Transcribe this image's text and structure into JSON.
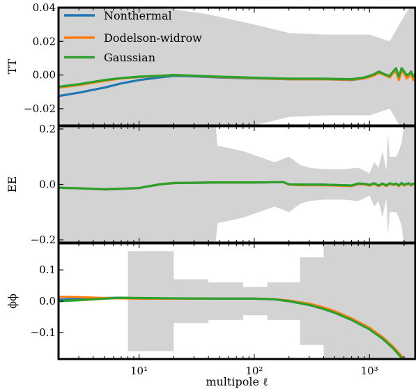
{
  "chart_data": [
    {
      "type": "line",
      "panel": "TT",
      "ylabel": "TT",
      "xscale": "log",
      "xlim": [
        2,
        2500
      ],
      "ylim": [
        -0.03,
        0.04
      ],
      "yticks": [
        -0.02,
        0.0,
        0.02,
        0.04
      ],
      "ytick_labels": [
        "−0.02",
        "0.00",
        "0.02",
        "0.04"
      ],
      "band": {
        "x": [
          2,
          5,
          10,
          20,
          40,
          100,
          200,
          400,
          700,
          1000,
          1500,
          2000,
          2500
        ],
        "upper": [
          0.04,
          0.04,
          0.04,
          0.039,
          0.036,
          0.03,
          0.025,
          0.024,
          0.024,
          0.024,
          0.02,
          0.035,
          0.045
        ],
        "lower": [
          -0.04,
          -0.04,
          -0.04,
          -0.039,
          -0.036,
          -0.03,
          -0.025,
          -0.024,
          -0.024,
          -0.024,
          -0.02,
          -0.035,
          -0.045
        ]
      },
      "series": [
        {
          "name": "Nonthermal",
          "color": "#1f77b4",
          "x": [
            2,
            3,
            5,
            7,
            10,
            15,
            20,
            30,
            50,
            100,
            200,
            400,
            700,
            900,
            1000,
            1100,
            1200,
            1300,
            1400,
            1500,
            1600,
            1700,
            1800,
            1900,
            2000,
            2100,
            2200,
            2300,
            2400,
            2500
          ],
          "y": [
            -0.0125,
            -0.0105,
            -0.0075,
            -0.005,
            -0.003,
            -0.0015,
            -0.0005,
            -0.0008,
            -0.0015,
            -0.002,
            -0.0025,
            -0.0025,
            -0.003,
            -0.002,
            -0.001,
            0.0,
            0.002,
            0.001,
            0.0,
            -0.001,
            0.002,
            0.003,
            -0.002,
            0.004,
            0.002,
            -0.001,
            0.0,
            0.002,
            -0.0015,
            0.001
          ]
        },
        {
          "name": "Dodelson-widrow",
          "color": "#ff7f0e",
          "x": [
            2,
            3,
            5,
            7,
            10,
            15,
            20,
            30,
            50,
            100,
            200,
            400,
            700,
            900,
            1000,
            1100,
            1200,
            1300,
            1400,
            1500,
            1600,
            1700,
            1800,
            1900,
            2000,
            2100,
            2200,
            2300,
            2400,
            2500
          ],
          "y": [
            -0.0075,
            -0.006,
            -0.0035,
            -0.002,
            -0.0012,
            -0.0006,
            0.0,
            -0.0005,
            -0.0012,
            -0.0018,
            -0.0025,
            -0.0025,
            -0.0028,
            -0.002,
            -0.0012,
            -0.0002,
            0.0012,
            0.0005,
            -0.0005,
            -0.0015,
            0.0012,
            0.002,
            -0.003,
            0.0025,
            0.001,
            -0.002,
            -0.001,
            0.001,
            -0.003,
            -0.001
          ]
        },
        {
          "name": "Gaussian",
          "color": "#2ca02c",
          "x": [
            2,
            3,
            5,
            7,
            10,
            15,
            20,
            30,
            50,
            100,
            200,
            400,
            700,
            900,
            1000,
            1100,
            1200,
            1300,
            1400,
            1500,
            1600,
            1700,
            1800,
            1900,
            2000,
            2100,
            2200,
            2300,
            2400,
            2500
          ],
          "y": [
            -0.007,
            -0.0055,
            -0.003,
            -0.0018,
            -0.001,
            -0.0005,
            0.0,
            -0.0004,
            -0.001,
            -0.0016,
            -0.0022,
            -0.0022,
            -0.0025,
            -0.0015,
            -0.0005,
            0.0005,
            0.002,
            0.001,
            0.0,
            -0.0005,
            0.002,
            0.004,
            -0.001,
            0.004,
            0.002,
            0.0,
            0.0005,
            0.002,
            -0.001,
            0.0005
          ]
        }
      ]
    },
    {
      "type": "line",
      "panel": "EE",
      "ylabel": "EE",
      "xscale": "log",
      "xlim": [
        2,
        2500
      ],
      "ylim": [
        -0.21,
        0.21
      ],
      "yticks": [
        -0.2,
        0.0,
        0.2
      ],
      "ytick_labels": [
        "−0.2",
        "0.0",
        "0.2"
      ],
      "band": {
        "x": [
          2,
          10,
          20,
          46,
          48,
          80,
          150,
          200,
          250,
          300,
          400,
          600,
          800,
          900,
          1000,
          1100,
          1200,
          1300,
          1400,
          1450,
          1500,
          1600,
          1700,
          1800,
          1900,
          2000,
          2010,
          2500
        ],
        "upper": [
          0.22,
          0.22,
          0.22,
          0.22,
          0.14,
          0.12,
          0.08,
          0.1,
          0.07,
          0.06,
          0.055,
          0.055,
          0.06,
          0.05,
          0.04,
          0.08,
          0.06,
          0.12,
          0.05,
          0.18,
          0.1,
          0.1,
          0.1,
          0.12,
          0.15,
          0.22,
          0.22,
          0.22
        ],
        "lower": [
          -0.22,
          -0.22,
          -0.22,
          -0.22,
          -0.14,
          -0.12,
          -0.08,
          -0.1,
          -0.07,
          -0.06,
          -0.055,
          -0.055,
          -0.06,
          -0.05,
          -0.04,
          -0.08,
          -0.06,
          -0.12,
          -0.05,
          -0.18,
          -0.1,
          -0.1,
          -0.1,
          -0.12,
          -0.15,
          -0.22,
          -0.22,
          -0.22
        ]
      },
      "series": [
        {
          "name": "Nonthermal",
          "color": "#1f77b4",
          "x": [
            2,
            3,
            5,
            7,
            10,
            15,
            20,
            30,
            50,
            100,
            180,
            200,
            250,
            400,
            700,
            800,
            900,
            1000,
            1100,
            1200,
            1300,
            1400,
            1500,
            1600,
            1700,
            1800,
            1900,
            2000,
            2100,
            2200,
            2300,
            2400,
            2500
          ],
          "y": [
            -0.012,
            -0.014,
            -0.018,
            -0.016,
            -0.013,
            0.0,
            0.005,
            0.006,
            0.007,
            0.007,
            0.008,
            0.0,
            -0.001,
            -0.001,
            -0.004,
            0.003,
            0.002,
            -0.002,
            0.004,
            -0.004,
            0.003,
            -0.004,
            0.004,
            0.0,
            0.003,
            -0.004,
            0.005,
            -0.002,
            0.002,
            0.004,
            -0.002,
            0.003,
            0.001
          ]
        },
        {
          "name": "Dodelson-widrow",
          "color": "#ff7f0e",
          "x": [
            2,
            3,
            5,
            7,
            10,
            15,
            20,
            30,
            50,
            100,
            180,
            200,
            250,
            400,
            700,
            800,
            900,
            1000,
            1100,
            1200,
            1300,
            1400,
            1500,
            1600,
            1700,
            1800,
            1900,
            2000,
            2100,
            2200,
            2300,
            2400,
            2500
          ],
          "y": [
            -0.012,
            -0.014,
            -0.018,
            -0.016,
            -0.013,
            0.0,
            0.005,
            0.006,
            0.007,
            0.007,
            0.008,
            -0.001,
            -0.003,
            -0.003,
            -0.006,
            0.001,
            0.0,
            -0.004,
            0.002,
            -0.006,
            0.001,
            -0.006,
            0.002,
            -0.002,
            0.001,
            -0.006,
            0.003,
            -0.004,
            0.0,
            0.002,
            -0.004,
            0.001,
            -0.001
          ]
        },
        {
          "name": "Gaussian",
          "color": "#2ca02c",
          "x": [
            2,
            3,
            5,
            7,
            10,
            15,
            20,
            30,
            50,
            100,
            180,
            200,
            250,
            400,
            700,
            800,
            900,
            1000,
            1100,
            1200,
            1300,
            1400,
            1500,
            1600,
            1700,
            1800,
            1900,
            2000,
            2100,
            2200,
            2300,
            2400,
            2500
          ],
          "y": [
            -0.012,
            -0.014,
            -0.018,
            -0.016,
            -0.013,
            0.0,
            0.005,
            0.006,
            0.007,
            0.007,
            0.008,
            0.0,
            -0.001,
            -0.001,
            -0.004,
            0.003,
            0.002,
            -0.002,
            0.004,
            -0.004,
            0.003,
            -0.004,
            0.004,
            0.0,
            0.003,
            -0.004,
            0.005,
            -0.002,
            0.002,
            0.004,
            -0.002,
            0.003,
            0.001
          ]
        }
      ]
    },
    {
      "type": "line",
      "panel": "phiphi",
      "ylabel": "ϕϕ",
      "xscale": "log",
      "xlim": [
        2,
        2500
      ],
      "ylim": [
        -0.185,
        0.185
      ],
      "yticks": [
        -0.1,
        0.0,
        0.1
      ],
      "ytick_labels": [
        "−0.1",
        "0.0",
        "0.1"
      ],
      "xticks": [
        10,
        100,
        1000
      ],
      "xtick_labels": [
        "10¹",
        "10²",
        "10³"
      ],
      "xlabel": "multipole ℓ",
      "band": {
        "x": [
          8,
          8,
          20,
          20,
          40,
          40,
          80,
          80,
          130,
          130,
          250,
          250,
          400,
          400,
          2500
        ],
        "upper": [
          0.16,
          0.16,
          0.16,
          0.07,
          0.07,
          0.06,
          0.06,
          0.045,
          0.045,
          0.06,
          0.06,
          0.14,
          0.14,
          0.2,
          0.2
        ],
        "lower": [
          -0.16,
          -0.16,
          -0.16,
          -0.07,
          -0.07,
          -0.06,
          -0.06,
          -0.045,
          -0.045,
          -0.06,
          -0.06,
          -0.14,
          -0.14,
          -0.2,
          -0.2
        ]
      },
      "series": [
        {
          "name": "Nonthermal",
          "color": "#1f77b4",
          "x": [
            2,
            3,
            5,
            7,
            10,
            20,
            50,
            100,
            150,
            200,
            300,
            400,
            500,
            700,
            1000,
            1300,
            1600,
            2000,
            2500
          ],
          "y": [
            0.005,
            0.007,
            0.01,
            0.011,
            0.009,
            0.008,
            0.008,
            0.008,
            0.006,
            0.0,
            -0.012,
            -0.025,
            -0.037,
            -0.06,
            -0.09,
            -0.12,
            -0.15,
            -0.19,
            -0.23
          ]
        },
        {
          "name": "Dodelson-widrow",
          "color": "#ff7f0e",
          "x": [
            2,
            3,
            5,
            7,
            10,
            20,
            50,
            100,
            150,
            200,
            300,
            400,
            500,
            700,
            1000,
            1300,
            1600,
            2000,
            2500
          ],
          "y": [
            0.014,
            0.013,
            0.01,
            0.009,
            0.008,
            0.008,
            0.008,
            0.008,
            0.006,
            0.002,
            -0.008,
            -0.02,
            -0.032,
            -0.055,
            -0.085,
            -0.115,
            -0.145,
            -0.185,
            -0.225
          ]
        },
        {
          "name": "Gaussian",
          "color": "#2ca02c",
          "x": [
            2,
            3,
            5,
            7,
            10,
            20,
            50,
            100,
            150,
            200,
            300,
            400,
            500,
            700,
            1000,
            1300,
            1600,
            2000,
            2500
          ],
          "y": [
            0.0,
            0.003,
            0.008,
            0.011,
            0.01,
            0.009,
            0.008,
            0.008,
            0.006,
            0.0,
            -0.012,
            -0.025,
            -0.037,
            -0.06,
            -0.09,
            -0.12,
            -0.15,
            -0.19,
            -0.23
          ]
        }
      ]
    }
  ],
  "legend": {
    "placement": "top-left",
    "entries": [
      {
        "label": "Nonthermal",
        "color": "#1f77b4"
      },
      {
        "label": "Dodelson-widrow",
        "color": "#ff7f0e"
      },
      {
        "label": "Gaussian",
        "color": "#2ca02c"
      }
    ]
  },
  "band_color": "#d3d3d3"
}
